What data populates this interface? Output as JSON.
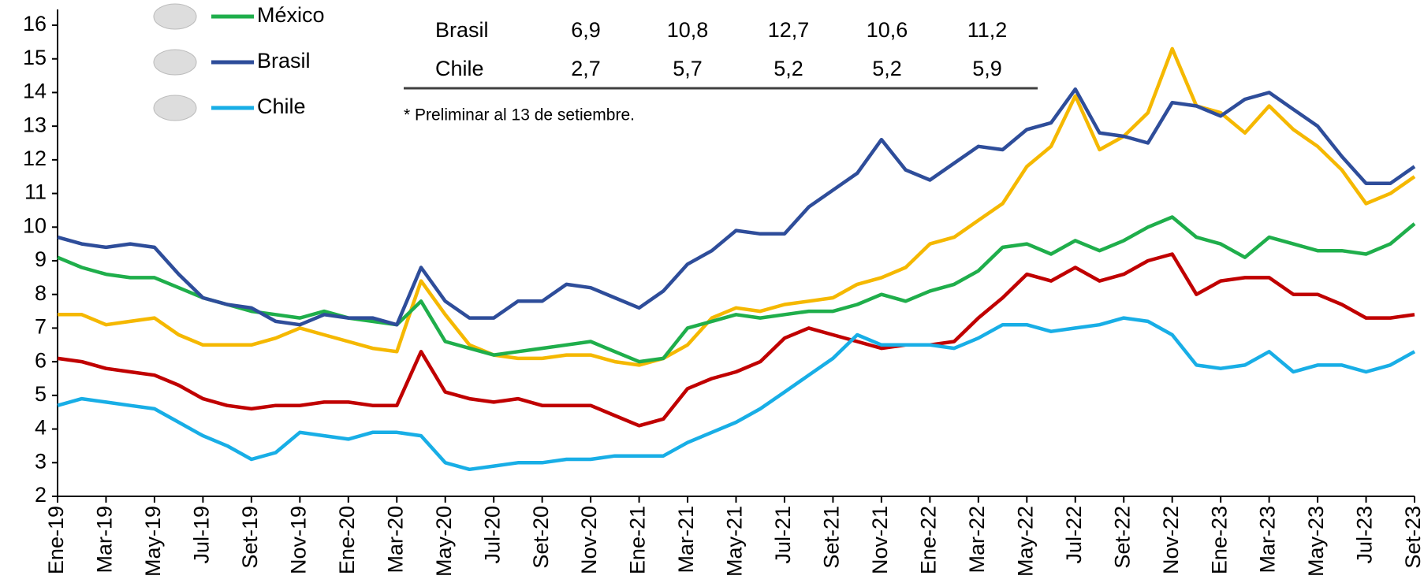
{
  "chart_data": {
    "type": "line",
    "categories": [
      "Ene-19",
      null,
      "Mar-19",
      null,
      "May-19",
      null,
      "Jul-19",
      null,
      "Set-19",
      null,
      "Nov-19",
      null,
      "Ene-20",
      null,
      "Mar-20",
      null,
      "May-20",
      null,
      "Jul-20",
      null,
      "Set-20",
      null,
      "Nov-20",
      null,
      "Ene-21",
      null,
      "Mar-21",
      null,
      "May-21",
      null,
      "Jul-21",
      null,
      "Set-21",
      null,
      "Nov-21",
      null,
      "Ene-22",
      null,
      "Mar-22",
      null,
      "May-22",
      null,
      "Jul-22",
      null,
      "Set-22",
      null,
      "Nov-22",
      null,
      "Ene-23",
      null,
      "Mar-23",
      null,
      "May-23",
      null,
      "Jul-23",
      null,
      "Set-23"
    ],
    "series": [
      {
        "color": "#f5b800",
        "values": [
          7.4,
          7.4,
          7.1,
          7.2,
          7.3,
          6.8,
          6.5,
          6.5,
          6.5,
          6.7,
          7.0,
          6.8,
          6.6,
          6.4,
          6.3,
          8.4,
          7.4,
          6.5,
          6.2,
          6.1,
          6.1,
          6.2,
          6.2,
          6.0,
          5.9,
          6.1,
          6.5,
          7.3,
          7.6,
          7.5,
          7.7,
          7.8,
          7.9,
          8.3,
          8.5,
          8.8,
          9.5,
          9.7,
          10.2,
          10.7,
          11.8,
          12.4,
          13.9,
          12.3,
          12.7,
          13.4,
          15.3,
          13.6,
          13.4,
          12.8,
          13.6,
          12.9,
          12.4,
          11.7,
          10.7,
          11.0,
          11.5
        ]
      },
      {
        "color": "#c00000",
        "values": [
          6.1,
          6.0,
          5.8,
          5.7,
          5.6,
          5.3,
          4.9,
          4.7,
          4.6,
          4.7,
          4.7,
          4.8,
          4.8,
          4.7,
          4.7,
          6.3,
          5.1,
          4.9,
          4.8,
          4.9,
          4.7,
          4.7,
          4.7,
          4.4,
          4.1,
          4.3,
          5.2,
          5.5,
          5.7,
          6.0,
          6.7,
          7.0,
          6.8,
          6.6,
          6.4,
          6.5,
          6.5,
          6.6,
          7.3,
          7.9,
          8.6,
          8.4,
          8.8,
          8.4,
          8.6,
          9.0,
          9.2,
          8.0,
          8.4,
          8.5,
          8.5,
          8.0,
          8.0,
          7.7,
          7.3,
          7.3,
          7.4
        ]
      },
      {
        "name": "México",
        "color": "#1fae4b",
        "values": [
          9.1,
          8.8,
          8.6,
          8.5,
          8.5,
          8.2,
          7.9,
          7.7,
          7.5,
          7.4,
          7.3,
          7.5,
          7.3,
          7.2,
          7.1,
          7.8,
          6.6,
          6.4,
          6.2,
          6.3,
          6.4,
          6.5,
          6.6,
          6.3,
          6.0,
          6.1,
          7.0,
          7.2,
          7.4,
          7.3,
          7.4,
          7.5,
          7.5,
          7.7,
          8.0,
          7.8,
          8.1,
          8.3,
          8.7,
          9.4,
          9.5,
          9.2,
          9.6,
          9.3,
          9.6,
          10.0,
          10.3,
          9.7,
          9.5,
          9.1,
          9.7,
          9.5,
          9.3,
          9.3,
          9.2,
          9.5,
          10.1
        ]
      },
      {
        "name": "Brasil",
        "color": "#2e4d9a",
        "values": [
          9.7,
          9.5,
          9.4,
          9.5,
          9.4,
          8.6,
          7.9,
          7.7,
          7.6,
          7.2,
          7.1,
          7.4,
          7.3,
          7.3,
          7.1,
          8.8,
          7.8,
          7.3,
          7.3,
          7.8,
          7.8,
          8.3,
          8.2,
          7.9,
          7.6,
          8.1,
          8.9,
          9.3,
          9.9,
          9.8,
          9.8,
          10.6,
          11.1,
          11.6,
          12.6,
          11.7,
          11.4,
          11.9,
          12.4,
          12.3,
          12.9,
          13.1,
          14.1,
          12.8,
          12.7,
          12.5,
          13.7,
          13.6,
          13.3,
          13.8,
          14.0,
          13.5,
          13.0,
          12.1,
          11.3,
          11.3,
          11.8
        ]
      },
      {
        "name": "Chile",
        "color": "#18aee6",
        "values": [
          4.7,
          4.9,
          4.8,
          4.7,
          4.6,
          4.2,
          3.8,
          3.5,
          3.1,
          3.3,
          3.9,
          3.8,
          3.7,
          3.9,
          3.9,
          3.8,
          3.0,
          2.8,
          2.9,
          3.0,
          3.0,
          3.1,
          3.1,
          3.2,
          3.2,
          3.2,
          3.6,
          3.9,
          4.2,
          4.6,
          5.1,
          5.6,
          6.1,
          6.8,
          6.5,
          6.5,
          6.5,
          6.4,
          6.7,
          7.1,
          7.1,
          6.9,
          7.0,
          7.1,
          7.3,
          7.2,
          6.8,
          5.9,
          5.8,
          5.9,
          6.3,
          5.7,
          5.9,
          5.9,
          5.7,
          5.9,
          6.3
        ]
      }
    ],
    "ylim": [
      2,
      16
    ],
    "yticks": [
      2,
      3,
      4,
      5,
      6,
      7,
      8,
      9,
      10,
      11,
      12,
      13,
      14,
      15,
      16
    ],
    "grid": false,
    "legend": "top-left"
  },
  "table": {
    "rows": [
      [
        "Brasil",
        "6,9",
        "10,8",
        "12,7",
        "10,6",
        "11,2"
      ],
      [
        "Chile",
        "2,7",
        "5,7",
        "5,2",
        "5,2",
        "5,9"
      ]
    ],
    "footnote": "* Preliminar al 13 de setiembre."
  }
}
